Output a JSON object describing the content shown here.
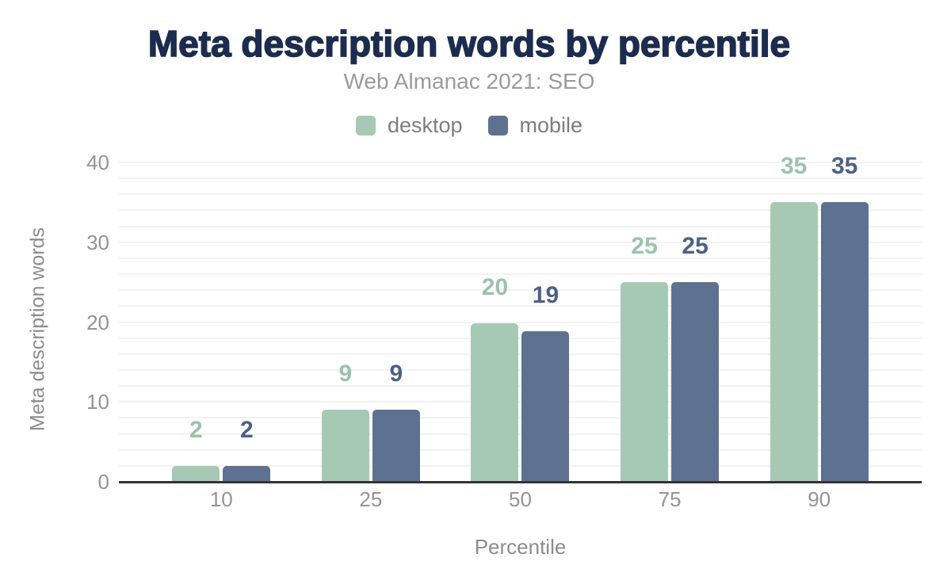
{
  "chart_data": {
    "type": "bar",
    "title": "Meta description words by percentile",
    "subtitle": "Web Almanac 2021: SEO",
    "xlabel": "Percentile",
    "ylabel": "Meta description words",
    "categories": [
      "10",
      "25",
      "50",
      "75",
      "90"
    ],
    "series": [
      {
        "name": "desktop",
        "color": "#a6c9b6",
        "label_color": "#9cc2ac",
        "values": [
          2,
          9,
          20,
          25,
          35
        ],
        "bar_values_exact": [
          2,
          9,
          19.9,
          25,
          35
        ]
      },
      {
        "name": "mobile",
        "color": "#5e7190",
        "label_color": "#4c6183",
        "values": [
          2,
          9,
          19,
          25,
          35
        ],
        "bar_values_exact": [
          2,
          9,
          18.9,
          25,
          35
        ]
      }
    ],
    "ylim": [
      0,
      40
    ],
    "yticks": [
      0,
      10,
      20,
      30,
      40
    ],
    "grid": {
      "step": 2,
      "on": true,
      "color": "#f2f2f2"
    },
    "axis_line_color": "#333333",
    "legend_position": "top",
    "text_colors": {
      "title": "#1c2c4e",
      "subtitle": "#9b9b9b",
      "legend": "#7d7d7d",
      "tick": "#949494",
      "axis_title": "#8c8c8c"
    }
  }
}
